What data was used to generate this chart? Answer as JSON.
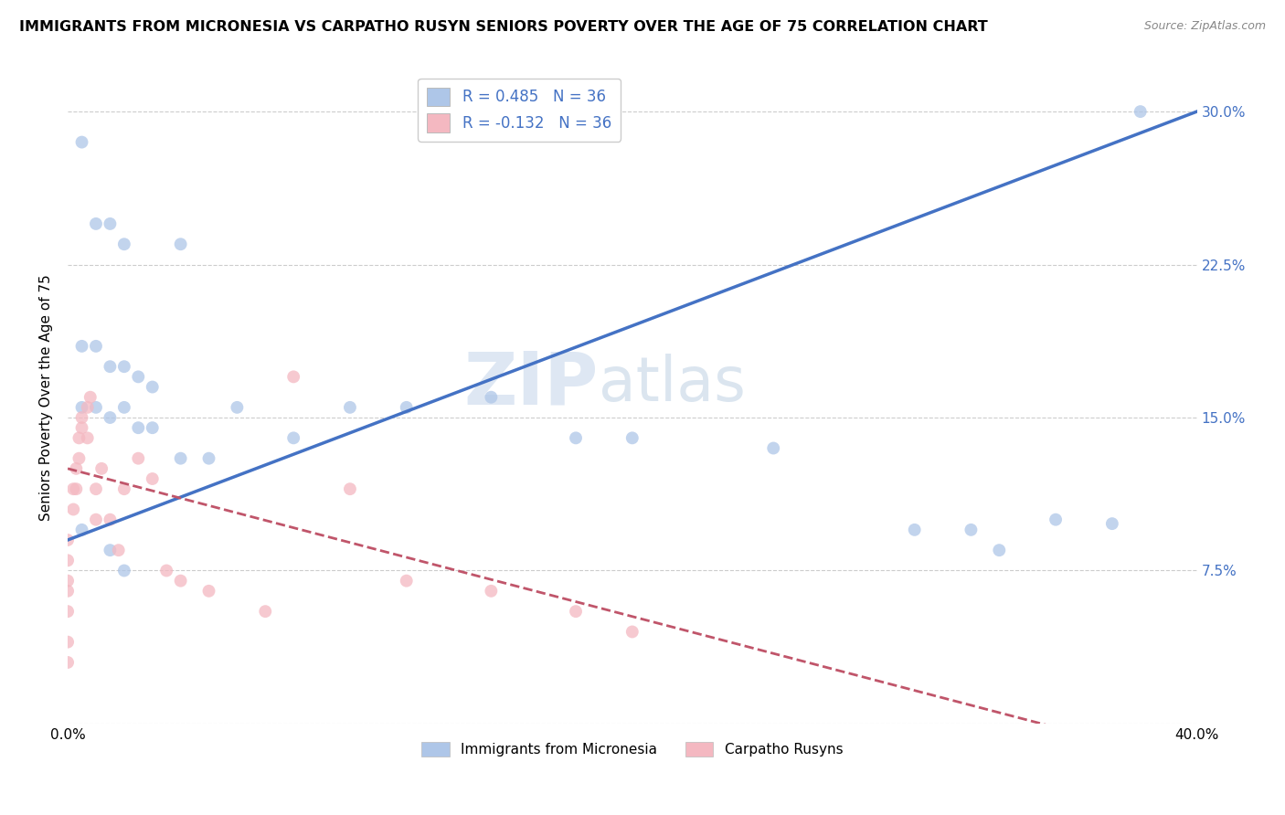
{
  "title": "IMMIGRANTS FROM MICRONESIA VS CARPATHO RUSYN SENIORS POVERTY OVER THE AGE OF 75 CORRELATION CHART",
  "source": "Source: ZipAtlas.com",
  "xlabel": "",
  "ylabel": "Seniors Poverty Over the Age of 75",
  "xlim": [
    0.0,
    0.4
  ],
  "ylim": [
    0.0,
    0.32
  ],
  "xticks": [
    0.0,
    0.1,
    0.2,
    0.3,
    0.4
  ],
  "xtick_labels": [
    "0.0%",
    "",
    "",
    "",
    "40.0%"
  ],
  "yticks": [
    0.0,
    0.075,
    0.15,
    0.225,
    0.3
  ],
  "ytick_labels_left": [
    "",
    "",
    "",
    "",
    ""
  ],
  "ytick_labels_right": [
    "",
    "7.5%",
    "15.0%",
    "22.5%",
    "30.0%"
  ],
  "background_color": "#ffffff",
  "grid_color": "#cccccc",
  "watermark_text": "ZIPatlas",
  "legend_entries": [
    {
      "label": "R = 0.485   N = 36",
      "color": "#aec6e8"
    },
    {
      "label": "R = -0.132   N = 36",
      "color": "#f4b8c1"
    }
  ],
  "blue_scatter_x": [
    0.005,
    0.01,
    0.015,
    0.02,
    0.04,
    0.005,
    0.01,
    0.015,
    0.02,
    0.025,
    0.03,
    0.005,
    0.01,
    0.015,
    0.02,
    0.025,
    0.03,
    0.04,
    0.05,
    0.06,
    0.08,
    0.1,
    0.12,
    0.15,
    0.18,
    0.2,
    0.25,
    0.3,
    0.32,
    0.33,
    0.35,
    0.37,
    0.38,
    0.005,
    0.015,
    0.02
  ],
  "blue_scatter_y": [
    0.285,
    0.245,
    0.245,
    0.235,
    0.235,
    0.185,
    0.185,
    0.175,
    0.175,
    0.17,
    0.165,
    0.155,
    0.155,
    0.15,
    0.155,
    0.145,
    0.145,
    0.13,
    0.13,
    0.155,
    0.14,
    0.155,
    0.155,
    0.16,
    0.14,
    0.14,
    0.135,
    0.095,
    0.095,
    0.085,
    0.1,
    0.098,
    0.3,
    0.095,
    0.085,
    0.075
  ],
  "pink_scatter_x": [
    0.0,
    0.0,
    0.0,
    0.0,
    0.0,
    0.0,
    0.0,
    0.002,
    0.002,
    0.003,
    0.003,
    0.004,
    0.004,
    0.005,
    0.005,
    0.007,
    0.007,
    0.008,
    0.01,
    0.01,
    0.012,
    0.015,
    0.018,
    0.02,
    0.025,
    0.03,
    0.035,
    0.04,
    0.05,
    0.07,
    0.08,
    0.1,
    0.12,
    0.15,
    0.18,
    0.2
  ],
  "pink_scatter_y": [
    0.03,
    0.04,
    0.055,
    0.065,
    0.07,
    0.08,
    0.09,
    0.105,
    0.115,
    0.115,
    0.125,
    0.13,
    0.14,
    0.145,
    0.15,
    0.14,
    0.155,
    0.16,
    0.1,
    0.115,
    0.125,
    0.1,
    0.085,
    0.115,
    0.13,
    0.12,
    0.075,
    0.07,
    0.065,
    0.055,
    0.17,
    0.115,
    0.07,
    0.065,
    0.055,
    0.045
  ],
  "blue_line_color": "#4472c4",
  "pink_line_color": "#c0556a",
  "blue_dot_color": "#aec6e8",
  "pink_dot_color": "#f4b8c1",
  "dot_size": 100,
  "dot_alpha": 0.75,
  "bottom_legend": [
    {
      "label": "Immigrants from Micronesia",
      "color": "#aec6e8"
    },
    {
      "label": "Carpatho Rusyns",
      "color": "#f4b8c1"
    }
  ]
}
